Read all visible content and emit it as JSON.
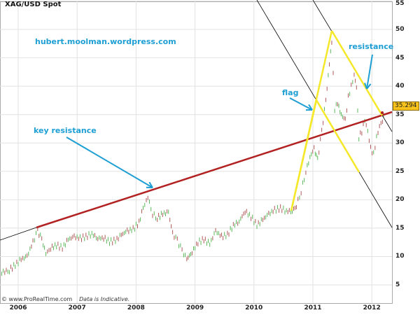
{
  "chart_data": {
    "type": "line",
    "title": "XAG/USD Spot",
    "xlabel": "",
    "ylabel": "",
    "xlim": [
      2005.7,
      2012.35
    ],
    "ylim": [
      3.3,
      55
    ],
    "grid": true,
    "x_ticks": [
      "2006",
      "2007",
      "2008",
      "2009",
      "2010",
      "2011",
      "2012"
    ],
    "y_ticks": [
      "5",
      "10",
      "15",
      "20",
      "25",
      "30",
      "35",
      "40",
      "45",
      "50",
      "55"
    ],
    "last_price_label": "35.294",
    "series": [
      {
        "name": "XAG/USD",
        "x": [
          2005.72,
          2005.85,
          2005.95,
          2006.05,
          2006.15,
          2006.25,
          2006.33,
          2006.4,
          2006.47,
          2006.55,
          2006.65,
          2006.75,
          2006.85,
          2006.95,
          2007.05,
          2007.15,
          2007.25,
          2007.35,
          2007.45,
          2007.55,
          2007.65,
          2007.75,
          2007.85,
          2007.95,
          2008.05,
          2008.12,
          2008.2,
          2008.28,
          2008.36,
          2008.45,
          2008.55,
          2008.62,
          2008.7,
          2008.78,
          2008.86,
          2008.95,
          2009.05,
          2009.15,
          2009.25,
          2009.35,
          2009.45,
          2009.55,
          2009.65,
          2009.75,
          2009.85,
          2009.95,
          2010.05,
          2010.15,
          2010.25,
          2010.35,
          2010.45,
          2010.55,
          2010.65,
          2010.72,
          2010.8,
          2010.88,
          2010.95,
          2011.02,
          2011.08,
          2011.15,
          2011.22,
          2011.28,
          2011.32,
          2011.37,
          2011.42,
          2011.48,
          2011.55,
          2011.6,
          2011.65,
          2011.7,
          2011.74,
          2011.78,
          2011.83,
          2011.88,
          2011.93,
          2011.98,
          2012.03,
          2012.08,
          2012.13,
          2012.18,
          2012.22
        ],
        "y": [
          7.2,
          7.6,
          8.5,
          9.5,
          10,
          12.5,
          14.5,
          13,
          10.5,
          11.5,
          12,
          11.5,
          13,
          13.5,
          13.2,
          13.5,
          14,
          13.2,
          13.3,
          12.6,
          12.8,
          13.8,
          14.5,
          14.8,
          16,
          18.5,
          20.5,
          17.5,
          16.8,
          17.5,
          17.8,
          14,
          12.8,
          11,
          9.5,
          10.8,
          12.5,
          13,
          12.2,
          14.5,
          13.5,
          13.8,
          15.5,
          16.2,
          18,
          17,
          15.5,
          16.5,
          17.5,
          18.2,
          18.5,
          18,
          18,
          19,
          21.5,
          25,
          27.5,
          29,
          27,
          32,
          37.5,
          44,
          48,
          36,
          37,
          35,
          34,
          38,
          40,
          42,
          40,
          31,
          32,
          34,
          32,
          29,
          28,
          31,
          33,
          34,
          35.3
        ]
      }
    ],
    "overlays": [
      {
        "label": "hubert.moolman.wordpress.com"
      },
      {
        "label": "key resistance"
      },
      {
        "label": "flag"
      },
      {
        "label": "resistance"
      }
    ],
    "colors": {
      "up": "#5cb85c",
      "down": "#b05a5a",
      "trend": "#b22222",
      "flag": "#f5e82a",
      "annotation": "#1e9fd4"
    }
  },
  "footer": {
    "source": "©  www.ProRealTime.com",
    "note": "Data is Indicative."
  }
}
